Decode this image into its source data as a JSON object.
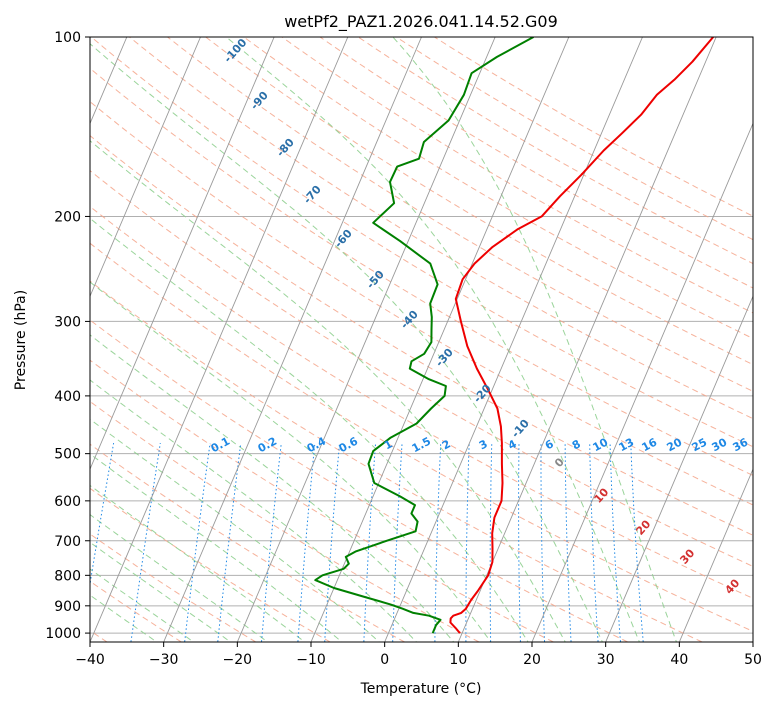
{
  "chart_data": {
    "type": "line",
    "title": "wetPf2_PAZ1.2026.041.14.52.G09",
    "xlabel": "Temperature (°C)",
    "ylabel": "Pressure (hPa)",
    "xlim": [
      -40,
      50
    ],
    "ylim": [
      1035,
      100
    ],
    "y_scale": "log",
    "x_ticks": [
      -40,
      -30,
      -20,
      -10,
      0,
      10,
      20,
      30,
      40,
      50
    ],
    "x_tick_labels": [
      "−40",
      "−30",
      "−20",
      "−10",
      "0",
      "10",
      "20",
      "30",
      "40",
      "50"
    ],
    "y_ticks": [
      1000,
      900,
      800,
      700,
      600,
      500,
      400,
      300,
      200,
      100
    ],
    "y_tick_labels": [
      "1000",
      "900",
      "800",
      "700",
      "600",
      "500",
      "400",
      "300",
      "200",
      "100"
    ],
    "grid": true,
    "skew": 35,
    "colors": {
      "temperature": "#ee0000",
      "dewpoint": "#008000",
      "isotherm": "#9a9a9a",
      "grid": "#b0b0b0",
      "dry_adiabat": "#f4a58a",
      "moist_adiabat": "#8fcf8f",
      "mixing_ratio": "#1e88e5",
      "dry_label": "#2a6fa8",
      "moist_label": "#d32f2f",
      "mixing_label": "#1e88e5"
    },
    "series": [
      {
        "key": "temperature",
        "points": [
          [
            1000,
            9.7
          ],
          [
            980,
            8.8
          ],
          [
            960,
            7.8
          ],
          [
            945,
            7.6
          ],
          [
            935,
            7.8
          ],
          [
            925,
            8.7
          ],
          [
            910,
            9.1
          ],
          [
            880,
            9.3
          ],
          [
            850,
            9.7
          ],
          [
            800,
            10.2
          ],
          [
            760,
            10.0
          ],
          [
            720,
            9.2
          ],
          [
            680,
            8.3
          ],
          [
            640,
            7.7
          ],
          [
            600,
            7.7
          ],
          [
            560,
            6.8
          ],
          [
            520,
            5.6
          ],
          [
            480,
            4.4
          ],
          [
            450,
            3.3
          ],
          [
            420,
            1.8
          ],
          [
            390,
            -0.6
          ],
          [
            360,
            -3.3
          ],
          [
            330,
            -5.9
          ],
          [
            300,
            -8.2
          ],
          [
            275,
            -10.2
          ],
          [
            255,
            -10.4
          ],
          [
            240,
            -9.7
          ],
          [
            225,
            -8.2
          ],
          [
            210,
            -5.8
          ],
          [
            200,
            -3.3
          ],
          [
            185,
            -2.0
          ],
          [
            170,
            -0.3
          ],
          [
            155,
            1.3
          ],
          [
            145,
            2.8
          ],
          [
            135,
            4.3
          ],
          [
            125,
            5.3
          ],
          [
            118,
            6.8
          ],
          [
            110,
            8.2
          ],
          [
            100,
            9.6
          ]
        ]
      },
      {
        "key": "dewpoint",
        "points": [
          [
            1000,
            6.0
          ],
          [
            970,
            6.0
          ],
          [
            950,
            6.3
          ],
          [
            935,
            4.5
          ],
          [
            925,
            2.2
          ],
          [
            910,
            0.5
          ],
          [
            895,
            -1.4
          ],
          [
            870,
            -5.3
          ],
          [
            840,
            -10.0
          ],
          [
            815,
            -13.0
          ],
          [
            800,
            -12.3
          ],
          [
            780,
            -9.8
          ],
          [
            765,
            -9.4
          ],
          [
            745,
            -10.2
          ],
          [
            730,
            -9.2
          ],
          [
            700,
            -5.6
          ],
          [
            675,
            -2.2
          ],
          [
            650,
            -2.5
          ],
          [
            630,
            -3.8
          ],
          [
            610,
            -3.8
          ],
          [
            590,
            -6.3
          ],
          [
            560,
            -10.6
          ],
          [
            520,
            -12.5
          ],
          [
            495,
            -12.6
          ],
          [
            470,
            -11.0
          ],
          [
            445,
            -8.3
          ],
          [
            420,
            -7.2
          ],
          [
            400,
            -6.1
          ],
          [
            385,
            -6.5
          ],
          [
            375,
            -9.2
          ],
          [
            360,
            -12.4
          ],
          [
            350,
            -12.6
          ],
          [
            340,
            -11.3
          ],
          [
            325,
            -11.0
          ],
          [
            310,
            -11.7
          ],
          [
            295,
            -12.4
          ],
          [
            280,
            -13.4
          ],
          [
            260,
            -13.5
          ],
          [
            240,
            -15.7
          ],
          [
            220,
            -21.1
          ],
          [
            205,
            -25.8
          ],
          [
            190,
            -24.1
          ],
          [
            175,
            -25.9
          ],
          [
            165,
            -25.8
          ],
          [
            160,
            -23.3
          ],
          [
            150,
            -23.6
          ],
          [
            138,
            -21.5
          ],
          [
            125,
            -20.9
          ],
          [
            115,
            -21.1
          ],
          [
            108,
            -18.6
          ],
          [
            100,
            -14.8
          ]
        ]
      }
    ],
    "dry_adiabat_labels": [
      "-100",
      "-90",
      "-80",
      "-70",
      "-60",
      "-50",
      "-40",
      "-30",
      "-20",
      "-10",
      "0",
      "10",
      "20",
      "30",
      "40"
    ],
    "mixing_ratio_labels": [
      "0.1",
      "0.2",
      "0.4",
      "0.6",
      "1",
      "1.5",
      "2",
      "3",
      "4",
      "6",
      "8",
      "10",
      "13",
      "16",
      "20",
      "25",
      "30",
      "36"
    ]
  }
}
